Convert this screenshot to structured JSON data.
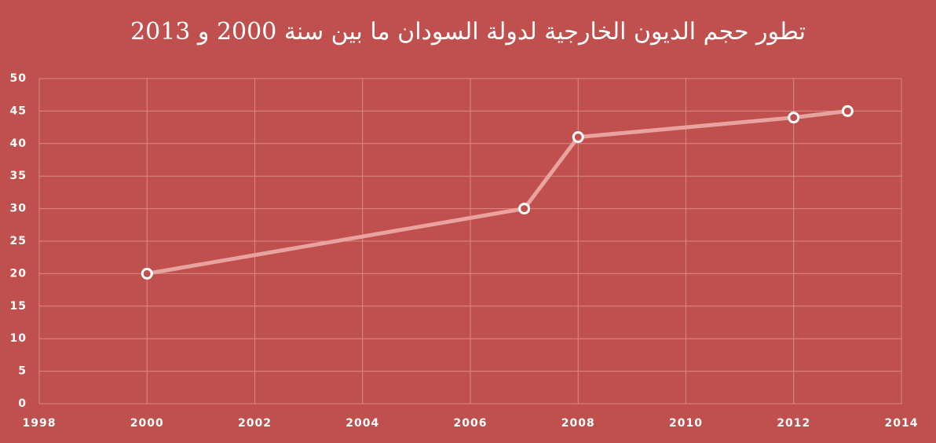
{
  "chart_data": {
    "type": "line",
    "title": "تطور حجم الديون الخارجية لدولة السودان ما بين سنة 2000 و 2013",
    "x": [
      2000,
      2007,
      2008,
      2012,
      2013
    ],
    "values": [
      20,
      30,
      41,
      44,
      45
    ],
    "color": "#e8a3a1",
    "xlim": [
      1998,
      2014
    ],
    "xticks": [
      1998,
      2000,
      2002,
      2004,
      2006,
      2008,
      2010,
      2012,
      2014
    ],
    "ylim": [
      0,
      50
    ],
    "yticks": [
      0,
      5,
      10,
      15,
      20,
      25,
      30,
      35,
      40,
      45,
      50
    ],
    "grid": true
  }
}
